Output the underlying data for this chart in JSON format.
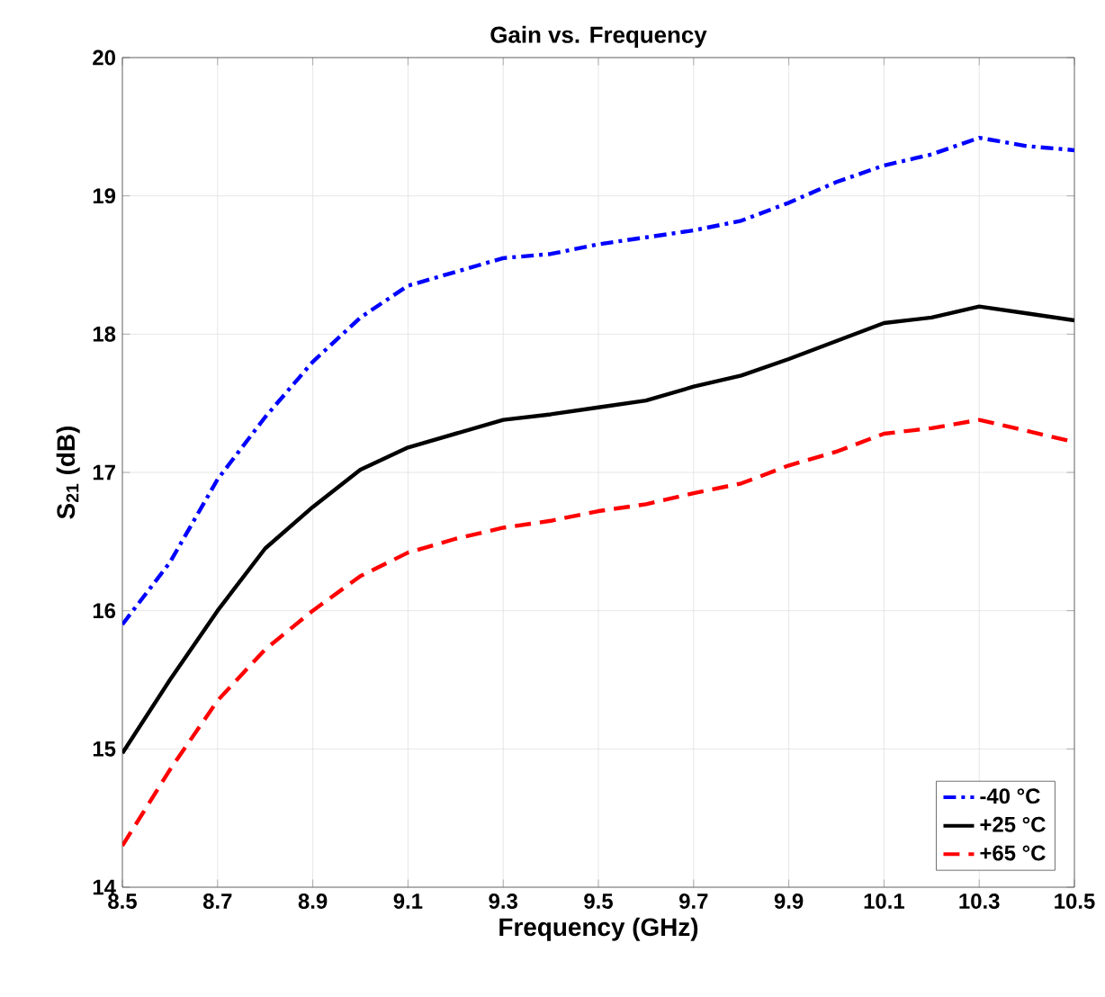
{
  "chart_data": {
    "type": "line",
    "title": "Gain vs. Frequency",
    "xlabel": "Frequency (GHz)",
    "ylabel": "S$_{21}$ (dB)",
    "x": [
      8.5,
      8.6,
      8.7,
      8.8,
      8.9,
      9.0,
      9.1,
      9.2,
      9.3,
      9.4,
      9.5,
      9.6,
      9.7,
      9.8,
      9.9,
      10.0,
      10.1,
      10.2,
      10.3,
      10.4,
      10.5
    ],
    "series": [
      {
        "name": "-40 °C",
        "color": "#0000ff",
        "line_style": "dashdot",
        "values": [
          15.9,
          16.35,
          16.95,
          17.4,
          17.8,
          18.12,
          18.35,
          18.45,
          18.55,
          18.58,
          18.65,
          18.7,
          18.75,
          18.82,
          18.95,
          19.1,
          19.22,
          19.3,
          19.42,
          19.36,
          19.33
        ]
      },
      {
        "name": "+25 °C",
        "color": "#000000",
        "line_style": "solid",
        "values": [
          14.97,
          15.5,
          16.0,
          16.45,
          16.75,
          17.02,
          17.18,
          17.28,
          17.38,
          17.42,
          17.47,
          17.52,
          17.62,
          17.7,
          17.82,
          17.95,
          18.08,
          18.12,
          18.2,
          18.15,
          18.1
        ]
      },
      {
        "name": "+65 °C",
        "color": "#ff0000",
        "line_style": "dashed",
        "values": [
          14.3,
          14.85,
          15.35,
          15.72,
          16.0,
          16.25,
          16.42,
          16.52,
          16.6,
          16.65,
          16.72,
          16.77,
          16.85,
          16.92,
          17.05,
          17.15,
          17.28,
          17.32,
          17.38,
          17.3,
          17.22
        ]
      }
    ],
    "xlim": [
      8.5,
      10.5
    ],
    "xticks": [
      8.5,
      8.7,
      8.9,
      9.1,
      9.3,
      9.5,
      9.7,
      9.9,
      10.1,
      10.3,
      10.5
    ],
    "ylim": [
      14,
      20
    ],
    "yticks": [
      14,
      15,
      16,
      17,
      18,
      19,
      20
    ],
    "grid": true,
    "legend": "bottom right",
    "marker": "none"
  }
}
